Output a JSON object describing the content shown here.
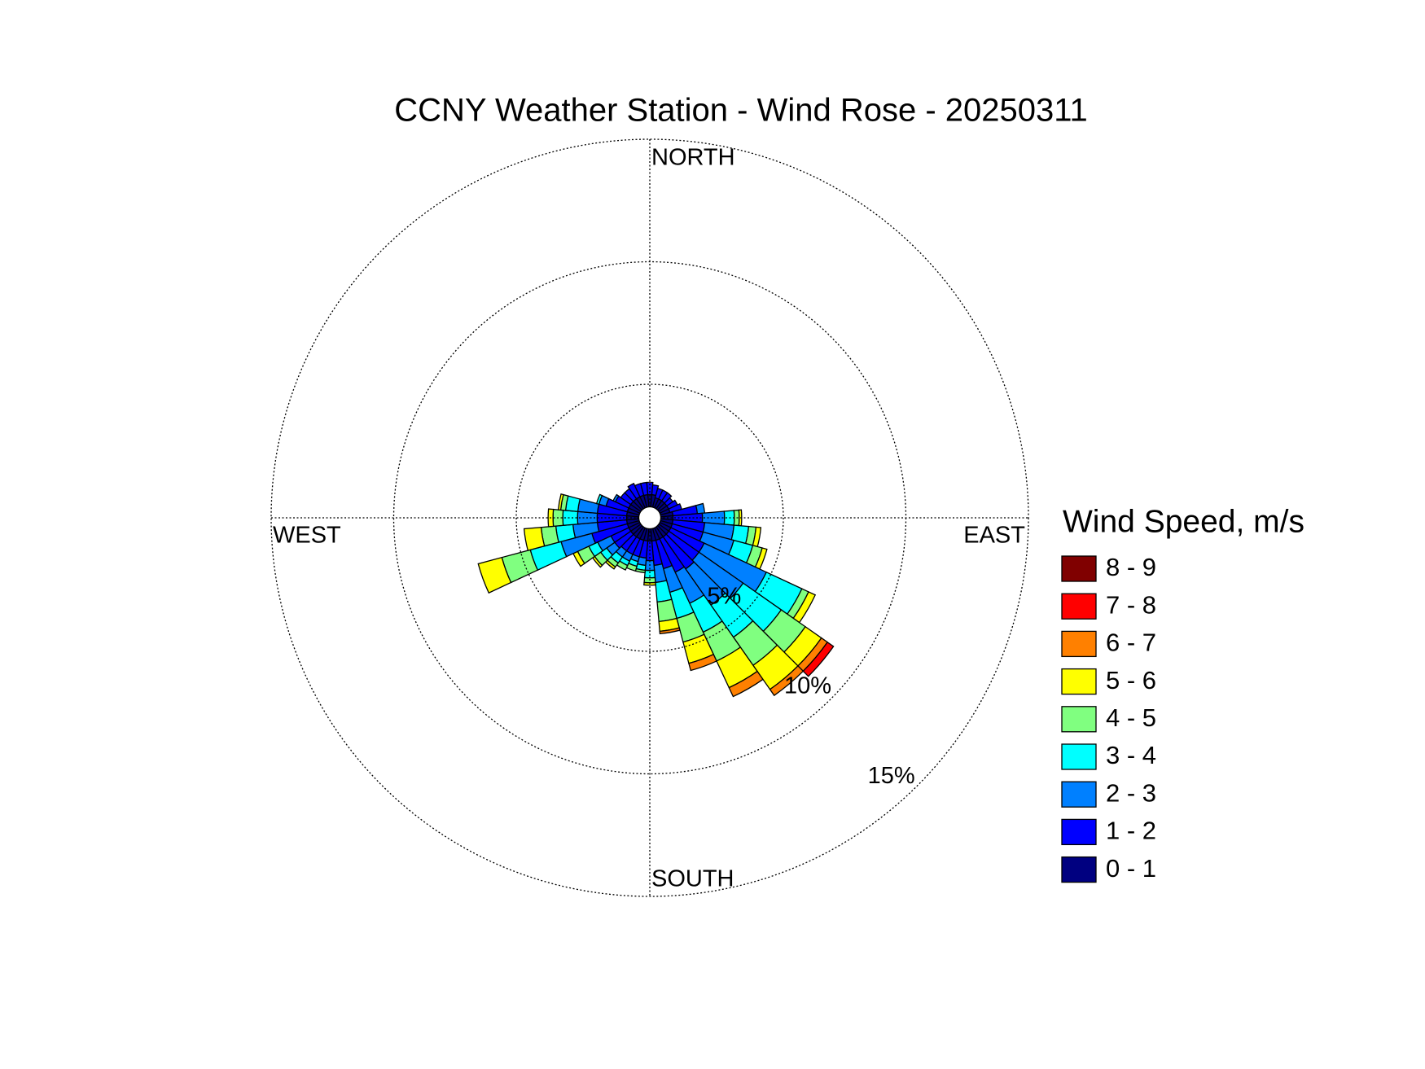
{
  "chart_data": {
    "type": "windrose",
    "title": "CCNY Weather Station - Wind Rose - 20250311",
    "legend_title": "Wind Speed, m/s",
    "direction_labels": [
      "NORTH",
      "EAST",
      "SOUTH",
      "WEST"
    ],
    "directions": [
      0,
      10,
      20,
      30,
      40,
      50,
      60,
      70,
      80,
      90,
      100,
      110,
      120,
      130,
      140,
      150,
      160,
      170,
      180,
      190,
      200,
      210,
      220,
      230,
      240,
      250,
      260,
      270,
      280,
      290,
      300,
      310,
      320,
      330,
      340,
      350
    ],
    "rlim": [
      0,
      15
    ],
    "rticks": [
      {
        "value": 5,
        "label": "5%"
      },
      {
        "value": 10,
        "label": "10%"
      },
      {
        "value": 15,
        "label": "15%"
      }
    ],
    "grid": true,
    "series": [
      {
        "name": "0 - 1",
        "color": "#000080",
        "values": [
          0.5,
          0.5,
          0.4,
          0.4,
          0.4,
          0.4,
          0.4,
          0.4,
          0.5,
          0.5,
          0.5,
          0.5,
          0.5,
          0.5,
          0.5,
          0.5,
          0.5,
          0.5,
          0.5,
          0.5,
          0.5,
          0.5,
          0.5,
          0.5,
          0.5,
          0.5,
          0.5,
          0.5,
          0.5,
          0.5,
          0.5,
          0.5,
          0.5,
          0.5,
          0.5,
          0.5
        ]
      },
      {
        "name": "1 - 2",
        "color": "#0000ff",
        "values": [
          0.5,
          0.4,
          0.4,
          0.4,
          0.4,
          0.3,
          0.4,
          0.5,
          1.0,
          1.2,
          1.3,
          1.3,
          1.5,
          1.5,
          1.6,
          1.5,
          1.2,
          1.0,
          0.8,
          0.7,
          0.7,
          0.7,
          0.7,
          0.8,
          0.8,
          1.5,
          1.2,
          1.2,
          1.2,
          0.9,
          0.6,
          0.5,
          0.5,
          0.6,
          0.5,
          0.5
        ]
      },
      {
        "name": "2 - 3",
        "color": "#0080ff",
        "values": [
          0,
          0,
          0,
          0,
          0,
          0,
          0,
          0,
          0.3,
          0.9,
          1.2,
          1.3,
          2.8,
          2.2,
          1.8,
          1.4,
          1.0,
          0.7,
          0.4,
          0.3,
          0.2,
          0.3,
          0.3,
          0.4,
          0.6,
          1.3,
          1.0,
          0.8,
          0.8,
          0.3,
          0.1,
          0,
          0,
          0,
          0,
          0
        ]
      },
      {
        "name": "3 - 4",
        "color": "#00ffff",
        "values": [
          0,
          0,
          0,
          0,
          0,
          0,
          0,
          0,
          0,
          0.4,
          0.6,
          0.8,
          1.6,
          1.9,
          1.6,
          1.3,
          1.1,
          0.8,
          0.3,
          0.2,
          0.2,
          0.2,
          0.3,
          0.3,
          0.4,
          1.3,
          0.7,
          0.6,
          0.5,
          0.1,
          0,
          0,
          0,
          0,
          0,
          0
        ]
      },
      {
        "name": "4 - 5",
        "color": "#80ff80",
        "values": [
          0,
          0,
          0,
          0,
          0,
          0,
          0,
          0,
          0,
          0.2,
          0.3,
          0.4,
          0.3,
          1.2,
          1.4,
          1.3,
          1.0,
          0.8,
          0.2,
          0.1,
          0.2,
          0.2,
          0.2,
          0.3,
          0.5,
          1.2,
          0.6,
          0.4,
          0.2,
          0,
          0,
          0,
          0,
          0,
          0,
          0
        ]
      },
      {
        "name": "5 - 6",
        "color": "#ffff00",
        "values": [
          0,
          0,
          0,
          0,
          0,
          0,
          0,
          0,
          0,
          0.1,
          0.2,
          0.2,
          0.3,
          0.8,
          1.2,
          1.2,
          0.9,
          0.4,
          0.1,
          0,
          0,
          0,
          0.1,
          0.1,
          0.2,
          1.0,
          0.7,
          0.2,
          0.1,
          0,
          0,
          0,
          0,
          0,
          0,
          0
        ]
      },
      {
        "name": "6 - 7",
        "color": "#ff8000",
        "values": [
          0,
          0,
          0,
          0,
          0,
          0,
          0,
          0,
          0,
          0,
          0,
          0,
          0,
          0.3,
          0.3,
          0.4,
          0.3,
          0.1,
          0,
          0,
          0,
          0,
          0,
          0,
          0,
          0,
          0,
          0,
          0,
          0,
          0,
          0,
          0,
          0,
          0,
          0
        ]
      },
      {
        "name": "7 - 8",
        "color": "#ff0000",
        "values": [
          0,
          0,
          0,
          0,
          0,
          0,
          0,
          0,
          0,
          0,
          0,
          0,
          0,
          0.3,
          0,
          0,
          0,
          0,
          0,
          0,
          0,
          0,
          0,
          0,
          0,
          0,
          0,
          0,
          0,
          0,
          0,
          0,
          0,
          0,
          0,
          0
        ]
      },
      {
        "name": "8 - 9",
        "color": "#800000",
        "values": [
          0,
          0,
          0,
          0,
          0,
          0,
          0,
          0,
          0,
          0,
          0,
          0,
          0,
          0,
          0,
          0,
          0,
          0,
          0,
          0,
          0,
          0,
          0,
          0,
          0,
          0,
          0,
          0,
          0,
          0,
          0,
          0,
          0,
          0,
          0,
          0
        ]
      }
    ]
  }
}
